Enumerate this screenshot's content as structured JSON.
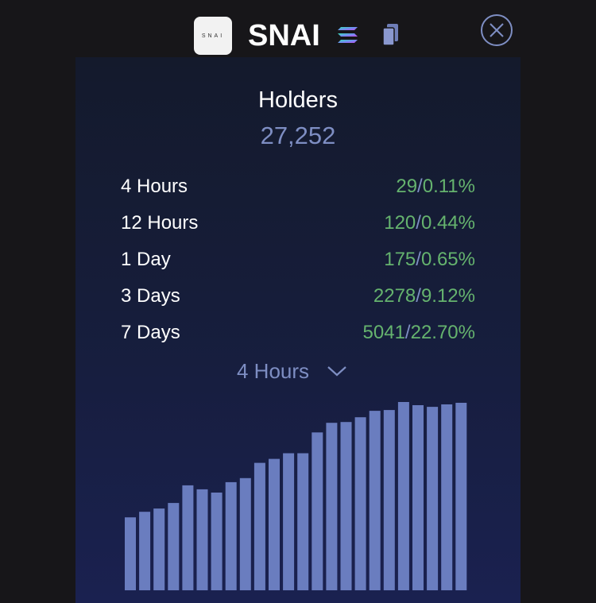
{
  "header": {
    "logo_text": "SNAI",
    "token_name": "SNAI",
    "chain_icon": "solana-icon",
    "copy_icon": "copy-icon",
    "close_icon": "close-icon"
  },
  "holders": {
    "label": "Holders",
    "value": "27,252"
  },
  "changes": [
    {
      "period": "4 Hours",
      "count": "29",
      "percent": "0.11%"
    },
    {
      "period": "12 Hours",
      "count": "120",
      "percent": "0.44%"
    },
    {
      "period": "1 Day",
      "count": "175",
      "percent": "0.65%"
    },
    {
      "period": "3 Days",
      "count": "2278",
      "percent": "9.12%"
    },
    {
      "period": "7 Days",
      "count": "5041",
      "percent": "22.70%"
    }
  ],
  "period_selector": {
    "selected": "4 Hours"
  },
  "colors": {
    "background": "#171619",
    "accent": "#7e8ec3",
    "positive": "#65b36e",
    "bar": "#6a7dbf"
  },
  "chart_data": {
    "type": "bar",
    "values": [
      91,
      98,
      102,
      109,
      131,
      126,
      122,
      135,
      140,
      159,
      164,
      171,
      171,
      197,
      209,
      210,
      216,
      224,
      225,
      235,
      231,
      229,
      232,
      234
    ],
    "ylim": [
      0,
      235
    ],
    "grid": false
  }
}
